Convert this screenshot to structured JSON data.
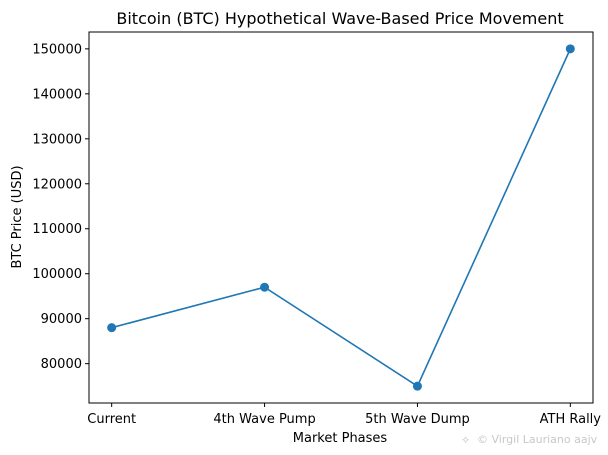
{
  "chart_data": {
    "type": "line",
    "title": "Bitcoin (BTC) Hypothetical Wave-Based Price Movement",
    "xlabel": "Market Phases",
    "ylabel": "BTC Price (USD)",
    "categories": [
      "Current",
      "4th Wave Pump",
      "5th Wave Dump",
      "ATH Rally"
    ],
    "series": [
      {
        "name": "BTC Price",
        "values": [
          88000,
          97000,
          75000,
          150000
        ]
      }
    ],
    "ylim": [
      71250,
      153750
    ],
    "yticks": [
      80000,
      90000,
      100000,
      110000,
      120000,
      130000,
      140000,
      150000
    ],
    "ytick_labels": [
      "80000",
      "90000",
      "100000",
      "110000",
      "120000",
      "130000",
      "140000",
      "150000"
    ],
    "grid": false,
    "marker": "circle"
  },
  "colors": {
    "line": "#1f77b4",
    "axis": "#000000"
  },
  "watermark": {
    "icon": "spark-icon",
    "text": "© Virgil Lauriano aajv"
  }
}
